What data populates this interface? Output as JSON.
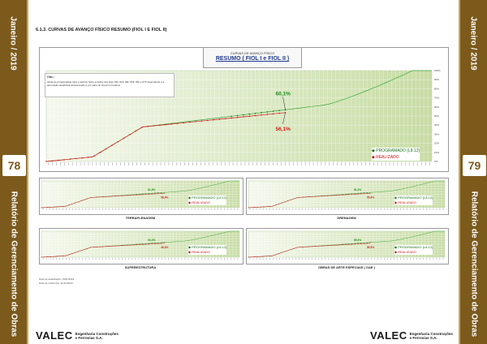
{
  "sidebar_left": {
    "month": "Janeiro / 2019",
    "page": "78",
    "report": "Relatório de Gerenciamento de Obras"
  },
  "sidebar_right": {
    "month": "Janeiro / 2019",
    "page": "79",
    "report": "Relatório de Gerenciamento de Obras"
  },
  "section_title": "6.1.3.   CURVAS DE AVANÇO FÍSICO RESUMO (FIOL I E FIOL II)",
  "main_chart": {
    "title_small": "CURVAS DE AVANÇO FÍSICO",
    "title": "RESUMO ( FIOL I e FIOL II )",
    "note_title": "Obs.:",
    "note_text": "Ainda as programadas para o avanço físico a títulos dos lotes 01F, 02F, 03F, 05F, 06F e 07F dependente d a aprovação atualizada da Execução a por parte do Governo Federal.",
    "legend_programado": "PROGRAMADO (L8.12)",
    "legend_realizado": "REALIZADO",
    "label_programado": "60,1%",
    "label_realizado": "56,1%",
    "y_ticks": [
      "100%",
      "90%",
      "80%",
      "70%",
      "60%",
      "50%",
      "40%",
      "30%",
      "20%",
      "10%",
      "0%"
    ]
  },
  "small_charts": [
    {
      "caption": "TERRAPLENAGEM",
      "legend_programado": "PROGRAMADO (L8.12)",
      "legend_realizado": "REALIZADO",
      "label_programado": "61,9%",
      "label_realizado": "56,4%"
    },
    {
      "caption": "DRENAGEM",
      "legend_programado": "PROGRAMADO (L8.12)",
      "legend_realizado": "REALIZADO",
      "label_programado": "61,4%",
      "label_realizado": "55,4%"
    },
    {
      "caption": "SUPERESTRUTURA",
      "legend_programado": "PROGRAMADO (L8.12)",
      "legend_realizado": "REALIZADO",
      "label_programado": "53,4%",
      "label_realizado": "46,4%"
    },
    {
      "caption": "OBRAS DE ARTE ESPECIAIS ( OAE )",
      "legend_programado": "PROGRAMADO (L8.12)",
      "legend_realizado": "REALIZADO",
      "label_programado": "65,4%",
      "label_realizado": "59,5%"
    }
  ],
  "footer_notes": [
    "Data de atualização:  15/01/2019",
    "Data de referência:   31/12/2018"
  ],
  "logo": {
    "name": "VALEC",
    "line1": "Engenharia Construções",
    "line2": "e Ferrovias S.A."
  },
  "colors": {
    "brand": "#7c5a1c",
    "programado": "#1b8a1b",
    "realizado": "#d01a1a"
  }
}
